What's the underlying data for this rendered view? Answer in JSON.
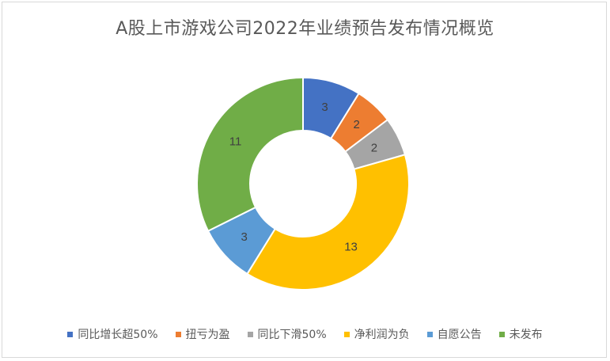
{
  "chart_data": {
    "type": "pie",
    "variant": "donut",
    "title": "A股上市游戏公司2022年业绩预告发布情况概览",
    "categories": [
      "同比增长超50%",
      "扭亏为盈",
      "同比下滑50%",
      "净利润为负",
      "自愿公告",
      "未发布"
    ],
    "values": [
      3,
      2,
      2,
      13,
      3,
      11
    ],
    "colors": [
      "#4472C4",
      "#ED7D31",
      "#A5A5A5",
      "#FFC000",
      "#5B9BD5",
      "#70AD47"
    ],
    "data_labels": true,
    "legend": "bottom"
  }
}
